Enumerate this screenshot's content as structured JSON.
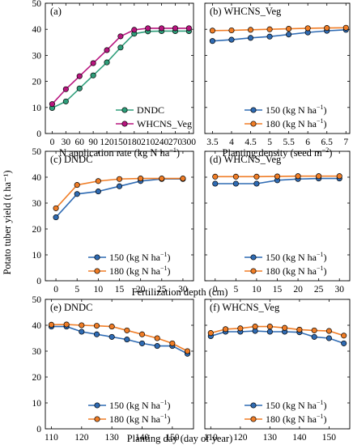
{
  "figure": {
    "ylabel_shared": "Potato tuber yield (t ha⁻¹)"
  },
  "colors": {
    "dndc": "#2e9e7a",
    "whcns": "#b8157f",
    "n150": "#2f6bb3",
    "n180": "#f07d26"
  },
  "chart_data": [
    {
      "id": "a",
      "type": "line",
      "panel_label": "(a)",
      "xlabel": "N application rate (kg N ha⁻¹)",
      "ylabel": "Potato tuber yield (t ha⁻¹)",
      "xlim": [
        -15,
        310
      ],
      "ylim": [
        0,
        50
      ],
      "xticks": [
        0,
        30,
        60,
        90,
        120,
        150,
        180,
        210,
        240,
        270,
        300
      ],
      "yticks": [
        0,
        10,
        20,
        30,
        40,
        50
      ],
      "legend_position": "bottom-right",
      "x": [
        0,
        30,
        60,
        90,
        120,
        150,
        180,
        210,
        240,
        270,
        300
      ],
      "series": [
        {
          "name": "DNDC",
          "color_key": "dndc",
          "values": [
            9.8,
            12.3,
            17.3,
            22.3,
            27.3,
            33.0,
            38.3,
            39.2,
            39.3,
            39.3,
            39.3
          ]
        },
        {
          "name": "WHCNS_Veg",
          "color_key": "whcns",
          "values": [
            11.3,
            17.0,
            22.0,
            27.0,
            32.0,
            37.3,
            39.8,
            40.4,
            40.4,
            40.4,
            40.4
          ]
        }
      ]
    },
    {
      "id": "b",
      "type": "line",
      "panel_label": "(b) WHCNS_Veg",
      "xlabel": "Planting density (seed m⁻²)",
      "ylabel": "",
      "xlim": [
        3.3,
        7.1
      ],
      "ylim": [
        0,
        50
      ],
      "xticks": [
        3.5,
        4,
        4.5,
        5,
        5.5,
        6,
        6.5,
        7
      ],
      "yticks": [
        0,
        10,
        20,
        30,
        40,
        50
      ],
      "legend_position": "bottom-right",
      "x": [
        3.5,
        4,
        4.5,
        5,
        5.5,
        6,
        6.5,
        7
      ],
      "series": [
        {
          "name": "150 (kg N ha⁻¹)",
          "color_key": "n150",
          "values": [
            35.5,
            36.0,
            36.7,
            37.2,
            38.0,
            38.8,
            39.4,
            39.8
          ]
        },
        {
          "name": "180 (kg N ha⁻¹)",
          "color_key": "n180",
          "values": [
            39.5,
            39.6,
            39.8,
            40.0,
            40.2,
            40.4,
            40.5,
            40.6
          ]
        }
      ]
    },
    {
      "id": "c",
      "type": "line",
      "panel_label": "(c) DNDC",
      "xlabel": "",
      "ylabel": "",
      "xlim": [
        -2.5,
        32.5
      ],
      "ylim": [
        0,
        50
      ],
      "xticks": [
        0,
        5,
        10,
        15,
        20,
        25,
        30
      ],
      "yticks": [
        0,
        10,
        20,
        30,
        40,
        50
      ],
      "legend_position": "bottom-right",
      "x": [
        0,
        5,
        10,
        15,
        20,
        25,
        30
      ],
      "series": [
        {
          "name": "150 (kg N ha⁻¹)",
          "color_key": "n150",
          "values": [
            24.5,
            33.5,
            34.5,
            36.5,
            38.5,
            39.3,
            39.3
          ]
        },
        {
          "name": "180 (kg N ha⁻¹)",
          "color_key": "n180",
          "values": [
            28.0,
            37.0,
            38.5,
            39.3,
            39.5,
            39.5,
            39.5
          ]
        }
      ]
    },
    {
      "id": "d",
      "type": "line",
      "panel_label": "(d) WHCNS_Veg",
      "xlabel": "",
      "ylabel": "",
      "xlim": [
        -2.5,
        32.5
      ],
      "ylim": [
        0,
        50
      ],
      "xticks": [
        0,
        5,
        10,
        15,
        20,
        25,
        30
      ],
      "yticks": [
        0,
        10,
        20,
        30,
        40,
        50
      ],
      "legend_position": "bottom-right",
      "x": [
        0,
        5,
        10,
        15,
        20,
        25,
        30
      ],
      "series": [
        {
          "name": "150 (kg N ha⁻¹)",
          "color_key": "n150",
          "values": [
            37.5,
            37.5,
            37.5,
            38.8,
            39.3,
            39.5,
            39.5
          ]
        },
        {
          "name": "180 (kg N ha⁻¹)",
          "color_key": "n180",
          "values": [
            40.2,
            40.2,
            40.2,
            40.3,
            40.4,
            40.4,
            40.4
          ]
        }
      ]
    },
    {
      "id": "e",
      "type": "line",
      "panel_label": "(e) DNDC",
      "xlabel": "",
      "ylabel": "",
      "xlim": [
        108,
        157
      ],
      "ylim": [
        0,
        50
      ],
      "xticks": [
        110,
        120,
        130,
        140,
        150
      ],
      "yticks": [
        0,
        10,
        20,
        30,
        40,
        50
      ],
      "legend_position": "bottom-right",
      "x": [
        110,
        115,
        120,
        125,
        130,
        135,
        140,
        145,
        150,
        155
      ],
      "series": [
        {
          "name": "150 (kg N ha⁻¹)",
          "color_key": "n150",
          "values": [
            39.5,
            39.5,
            37.5,
            36.5,
            35.5,
            34.5,
            33.0,
            32.0,
            32.0,
            29.0
          ]
        },
        {
          "name": "180 (kg N ha⁻¹)",
          "color_key": "n180",
          "values": [
            40.2,
            40.3,
            40.0,
            39.8,
            39.5,
            38.0,
            36.5,
            35.0,
            33.0,
            30.0
          ]
        }
      ]
    },
    {
      "id": "f",
      "type": "line",
      "panel_label": "(f) WHCNS_Veg",
      "xlabel": "",
      "ylabel": "",
      "xlim": [
        108,
        157
      ],
      "ylim": [
        0,
        50
      ],
      "xticks": [
        110,
        120,
        130,
        140,
        150
      ],
      "yticks": [
        0,
        10,
        20,
        30,
        40,
        50
      ],
      "legend_position": "bottom-right",
      "x": [
        110,
        115,
        120,
        125,
        130,
        135,
        140,
        145,
        150,
        155
      ],
      "series": [
        {
          "name": "150 (kg N ha⁻¹)",
          "color_key": "n150",
          "values": [
            35.8,
            37.5,
            37.5,
            37.8,
            37.5,
            37.5,
            37.3,
            35.5,
            35.0,
            33.0
          ]
        },
        {
          "name": "180 (kg N ha⁻¹)",
          "color_key": "n180",
          "values": [
            37.0,
            38.5,
            38.8,
            39.5,
            39.5,
            39.0,
            38.3,
            38.0,
            37.8,
            36.0
          ]
        }
      ]
    }
  ],
  "shared_xlabels": {
    "row2": "Fertilization depth (cm)",
    "row3": "Planting day (day of year)"
  }
}
